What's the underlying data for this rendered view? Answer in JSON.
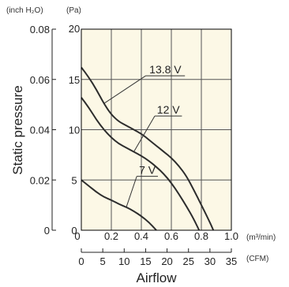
{
  "chart_data": {
    "type": "line",
    "title": "",
    "xlabel": "Airflow",
    "ylabel": "Static pressure",
    "xlim": [
      0,
      1.0
    ],
    "ylim": [
      0,
      20
    ],
    "left_axis_unit": "(inch H₂O)",
    "plot_axis_unit": "(Pa)",
    "x_unit": "(m³/min)",
    "cfm_unit": "(CFM)",
    "pa_ticks": [
      "0",
      "5",
      "10",
      "15",
      "20"
    ],
    "inch_ticks": [
      "0",
      "0.02",
      "0.04",
      "0.06",
      "0.08"
    ],
    "m3_ticks": [
      "0",
      "0.2",
      "0.4",
      "0.6",
      "0.8",
      "1.0"
    ],
    "cfm_ticks": [
      "0",
      "5",
      "10",
      "15",
      "20",
      "25",
      "30",
      "35"
    ],
    "grid": true,
    "plot_background": "#fcf8e6",
    "curve_color": "#2d2d2d",
    "series": [
      {
        "name": "13.8 V",
        "label_at": [
          0.56,
          15.6
        ],
        "points": [
          [
            0,
            16.2
          ],
          [
            0.05,
            15.2
          ],
          [
            0.1,
            14.0
          ],
          [
            0.15,
            12.6
          ],
          [
            0.2,
            11.5
          ],
          [
            0.25,
            10.8
          ],
          [
            0.3,
            10.4
          ],
          [
            0.35,
            10.0
          ],
          [
            0.4,
            9.6
          ],
          [
            0.45,
            9.0
          ],
          [
            0.5,
            8.4
          ],
          [
            0.55,
            7.8
          ],
          [
            0.6,
            7.2
          ],
          [
            0.65,
            6.4
          ],
          [
            0.7,
            5.4
          ],
          [
            0.75,
            4.0
          ],
          [
            0.8,
            2.5
          ],
          [
            0.85,
            1.0
          ],
          [
            0.88,
            0
          ]
        ]
      },
      {
        "name": "12 V",
        "label_at": [
          0.58,
          11.6
        ],
        "points": [
          [
            0,
            13.2
          ],
          [
            0.05,
            12.2
          ],
          [
            0.1,
            11.0
          ],
          [
            0.15,
            10.0
          ],
          [
            0.2,
            9.2
          ],
          [
            0.25,
            8.6
          ],
          [
            0.3,
            8.2
          ],
          [
            0.35,
            7.8
          ],
          [
            0.4,
            7.4
          ],
          [
            0.45,
            6.9
          ],
          [
            0.5,
            6.3
          ],
          [
            0.55,
            5.6
          ],
          [
            0.6,
            4.7
          ],
          [
            0.65,
            3.6
          ],
          [
            0.7,
            2.4
          ],
          [
            0.75,
            1.1
          ],
          [
            0.785,
            0
          ]
        ]
      },
      {
        "name": "7 V",
        "label_at": [
          0.44,
          5.6
        ],
        "points": [
          [
            0,
            5.0
          ],
          [
            0.05,
            4.4
          ],
          [
            0.1,
            3.8
          ],
          [
            0.15,
            3.3
          ],
          [
            0.2,
            3.0
          ],
          [
            0.25,
            2.6
          ],
          [
            0.3,
            2.3
          ],
          [
            0.35,
            1.9
          ],
          [
            0.4,
            1.4
          ],
          [
            0.45,
            0.8
          ],
          [
            0.5,
            0
          ]
        ]
      }
    ]
  }
}
